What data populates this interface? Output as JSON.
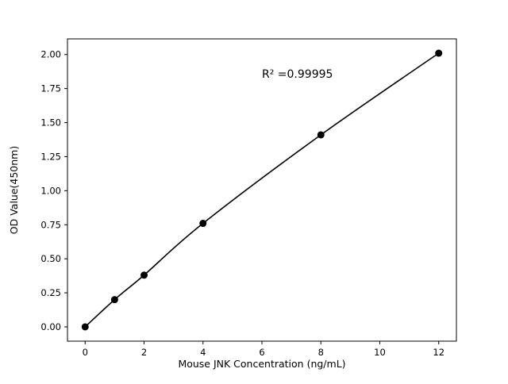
{
  "figure": {
    "background": "#ffffff"
  },
  "chart_data": {
    "type": "line",
    "title": "",
    "xlabel": "Mouse JNK Concentration (ng/mL)",
    "ylabel": "OD Value(450nm)",
    "x": [
      0,
      1,
      2,
      4,
      8,
      12
    ],
    "y": [
      0.0,
      0.2,
      0.38,
      0.76,
      1.41,
      2.01
    ],
    "xlim": [
      -0.6,
      12.6
    ],
    "ylim": [
      -0.105,
      2.115
    ],
    "xticks": [
      0,
      2,
      4,
      6,
      8,
      10,
      12
    ],
    "xtick_labels": [
      "0",
      "2",
      "4",
      "6",
      "8",
      "10",
      "12"
    ],
    "yticks": [
      0.0,
      0.25,
      0.5,
      0.75,
      1.0,
      1.25,
      1.5,
      1.75,
      2.0
    ],
    "ytick_labels": [
      "0.00",
      "0.25",
      "0.50",
      "0.75",
      "1.00",
      "1.25",
      "1.50",
      "1.75",
      "2.00"
    ],
    "annotation": {
      "text": "R² =0.99995",
      "x": 6.0,
      "y": 1.83
    },
    "line_color": "#000000",
    "marker_color": "#000000",
    "marker": "circle",
    "marker_radius": 4.5,
    "grid": false,
    "legend_position": "none"
  }
}
